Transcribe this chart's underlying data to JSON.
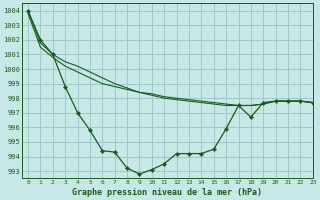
{
  "title": "Graphe pression niveau de la mer (hPa)",
  "background_color": "#c8e8e8",
  "grid_color": "#a0c8c8",
  "line_color": "#1a5c1a",
  "xlim": [
    -0.5,
    23
  ],
  "ylim": [
    992.5,
    1004.5
  ],
  "yticks": [
    993,
    994,
    995,
    996,
    997,
    998,
    999,
    1000,
    1001,
    1002,
    1003,
    1004
  ],
  "xticks": [
    0,
    1,
    2,
    3,
    4,
    5,
    6,
    7,
    8,
    9,
    10,
    11,
    12,
    13,
    14,
    15,
    16,
    17,
    18,
    19,
    20,
    21,
    22,
    23
  ],
  "series1_x": [
    0,
    1,
    2,
    3,
    4,
    5,
    6,
    7,
    8,
    9,
    10,
    11,
    12,
    13,
    14,
    15,
    16,
    17,
    18,
    19,
    20,
    21,
    22,
    23
  ],
  "series1_y": [
    1004,
    1002,
    1001,
    998.8,
    997.0,
    995.8,
    994.4,
    994.3,
    993.2,
    992.8,
    993.1,
    993.5,
    994.2,
    994.2,
    994.2,
    994.5,
    995.9,
    997.5,
    996.7,
    997.7,
    997.8,
    997.8,
    997.8,
    997.7
  ],
  "series2_x": [
    0,
    1,
    2,
    3,
    4,
    5,
    6,
    7,
    8,
    9,
    10,
    11,
    12,
    13,
    14,
    15,
    16,
    17,
    18,
    19,
    20,
    21,
    22,
    23
  ],
  "series2_y": [
    1004,
    1001.8,
    1001,
    1000.5,
    1000.2,
    999.8,
    999.4,
    999.0,
    998.7,
    998.4,
    998.2,
    998.0,
    997.9,
    997.8,
    997.7,
    997.6,
    997.5,
    997.5,
    997.5,
    997.6,
    997.8,
    997.8,
    997.8,
    997.7
  ],
  "series3_x": [
    0,
    1,
    2,
    3,
    4,
    5,
    6,
    7,
    8,
    9,
    10,
    11,
    12,
    13,
    14,
    15,
    16,
    17,
    18,
    19,
    20,
    21,
    22,
    23
  ],
  "series3_y": [
    1003.8,
    1001.5,
    1000.8,
    1000.2,
    999.8,
    999.4,
    999.0,
    998.8,
    998.6,
    998.4,
    998.3,
    998.1,
    998.0,
    997.9,
    997.8,
    997.7,
    997.6,
    997.5,
    997.5,
    997.6,
    997.8,
    997.8,
    997.8,
    997.7
  ]
}
